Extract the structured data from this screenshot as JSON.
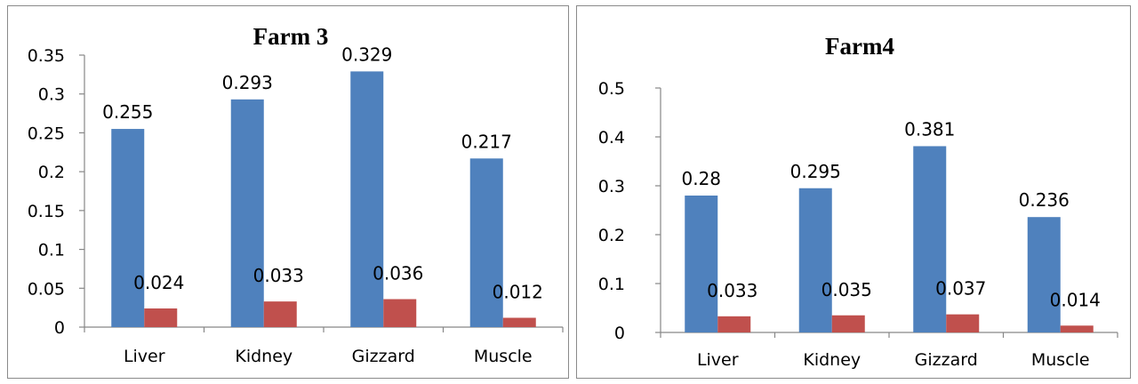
{
  "chart_data": [
    {
      "type": "bar",
      "title": "Farm 3",
      "categories": [
        "Liver",
        "Kidney",
        "Gizzard",
        "Muscle"
      ],
      "series": [
        {
          "color": "#4F81BD",
          "values": [
            0.255,
            0.293,
            0.329,
            0.217
          ],
          "labels": [
            "0.255",
            "0.293",
            "0.329",
            "0.217"
          ]
        },
        {
          "color": "#C0504D",
          "values": [
            0.024,
            0.033,
            0.036,
            0.012
          ],
          "labels": [
            "0.024",
            "0.033",
            "0.036",
            "0.012"
          ]
        }
      ],
      "ylim": [
        0,
        0.35
      ],
      "yticks": [
        "0",
        "0.05",
        "0.1",
        "0.15",
        "0.2",
        "0.25",
        "0.3",
        "0.35"
      ],
      "grid": false,
      "legend": "none"
    },
    {
      "type": "bar",
      "title": "Farm4",
      "categories": [
        "Liver",
        "Kidney",
        "Gizzard",
        "Muscle"
      ],
      "series": [
        {
          "color": "#4F81BD",
          "values": [
            0.28,
            0.295,
            0.381,
            0.236
          ],
          "labels": [
            "0.28",
            "0.295",
            "0.381",
            "0.236"
          ]
        },
        {
          "color": "#C0504D",
          "values": [
            0.033,
            0.035,
            0.037,
            0.014
          ],
          "labels": [
            "0.033",
            "0.035",
            "0.037",
            "0.014"
          ]
        }
      ],
      "ylim": [
        0,
        0.5
      ],
      "yticks": [
        "0",
        "0.1",
        "0.2",
        "0.3",
        "0.4",
        "0.5"
      ],
      "grid": false,
      "legend": "none"
    }
  ]
}
